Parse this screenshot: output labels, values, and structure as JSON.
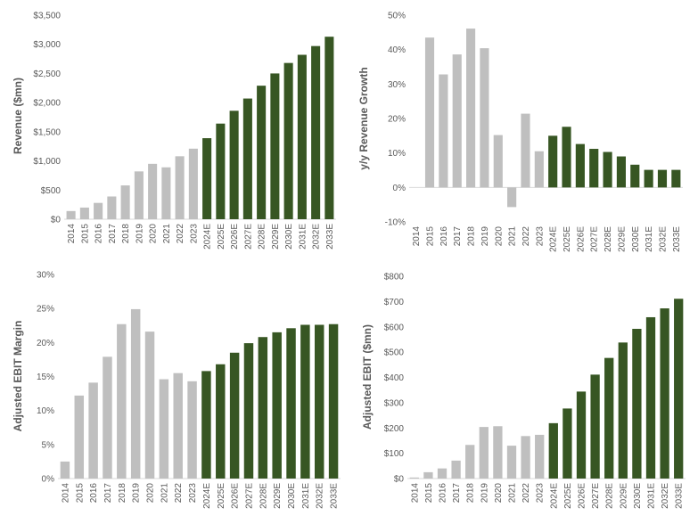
{
  "colors": {
    "actual": "#bfbfbf",
    "estimate": "#375623",
    "axis": "#d9d9d9",
    "text": "#595959"
  },
  "chart_data": [
    {
      "type": "bar",
      "title": "",
      "xlabel": "",
      "ylabel": "Revenue ($mn)",
      "ylim": [
        0,
        3500
      ],
      "yticks": [
        0,
        500,
        1000,
        1500,
        2000,
        2500,
        3000,
        3500
      ],
      "ytick_labels": [
        "$0",
        "$500",
        "$1,000",
        "$1,500",
        "$2,000",
        "$2,500",
        "$3,000",
        "$3,500"
      ],
      "categories": [
        "2014",
        "2015",
        "2016",
        "2017",
        "2018",
        "2019",
        "2020",
        "2021",
        "2022",
        "2023",
        "2024E",
        "2025E",
        "2026E",
        "2027E",
        "2028E",
        "2029E",
        "2030E",
        "2031E",
        "2032E",
        "2033E"
      ],
      "values": [
        140,
        200,
        280,
        390,
        580,
        820,
        950,
        890,
        1080,
        1210,
        1390,
        1640,
        1860,
        2070,
        2290,
        2500,
        2680,
        2820,
        2970,
        3130
      ]
    },
    {
      "type": "bar",
      "title": "",
      "xlabel": "",
      "ylabel": "y/y Revenue Growth",
      "ylim": [
        -10,
        50
      ],
      "yticks": [
        -10,
        0,
        10,
        20,
        30,
        40,
        50
      ],
      "ytick_labels": [
        "-10%",
        "0%",
        "10%",
        "20%",
        "30%",
        "40%",
        "50%"
      ],
      "categories": [
        "2014",
        "2015",
        "2016",
        "2017",
        "2018",
        "2019",
        "2020",
        "2021",
        "2022",
        "2023",
        "2024E",
        "2025E",
        "2026E",
        "2027E",
        "2028E",
        "2029E",
        "2030E",
        "2031E",
        "2032E",
        "2033E"
      ],
      "values": [
        null,
        43.5,
        32.8,
        38.6,
        46.1,
        40.4,
        15.2,
        -5.7,
        21.4,
        10.5,
        15.0,
        17.6,
        12.6,
        11.2,
        10.3,
        9.0,
        6.6,
        5.1,
        5.1,
        5.1
      ]
    },
    {
      "type": "bar",
      "title": "",
      "xlabel": "",
      "ylabel": "Adjusted EBIT Margin",
      "ylim": [
        0,
        30
      ],
      "yticks": [
        0,
        5,
        10,
        15,
        20,
        25,
        30
      ],
      "ytick_labels": [
        "0%",
        "5%",
        "10%",
        "15%",
        "20%",
        "25%",
        "30%"
      ],
      "categories": [
        "2014",
        "2015",
        "2016",
        "2017",
        "2018",
        "2019",
        "2020",
        "2021",
        "2022",
        "2023",
        "2024E",
        "2025E",
        "2026E",
        "2027E",
        "2028E",
        "2029E",
        "2030E",
        "2031E",
        "2032E",
        "2033E"
      ],
      "values": [
        2.5,
        12.2,
        14.1,
        17.9,
        22.7,
        24.9,
        21.6,
        14.6,
        15.5,
        14.3,
        15.8,
        16.8,
        18.5,
        19.9,
        20.8,
        21.5,
        22.1,
        22.6,
        22.6,
        22.7
      ]
    },
    {
      "type": "bar",
      "title": "",
      "xlabel": "",
      "ylabel": "Adjusted EBIT ($mn)",
      "ylim": [
        0,
        800
      ],
      "yticks": [
        0,
        100,
        200,
        300,
        400,
        500,
        600,
        700,
        800
      ],
      "ytick_labels": [
        "$0",
        "$100",
        "$200",
        "$300",
        "$400",
        "$500",
        "$600",
        "$700",
        "$800"
      ],
      "categories": [
        "2014",
        "2015",
        "2016",
        "2017",
        "2018",
        "2019",
        "2020",
        "2021",
        "2022",
        "2023",
        "2024E",
        "2025E",
        "2026E",
        "2027E",
        "2028E",
        "2029E",
        "2030E",
        "2031E",
        "2032E",
        "2033E"
      ],
      "values": [
        4,
        25,
        40,
        71,
        133,
        204,
        207,
        130,
        168,
        173,
        219,
        277,
        344,
        411,
        477,
        538,
        592,
        638,
        673,
        711
      ]
    }
  ]
}
